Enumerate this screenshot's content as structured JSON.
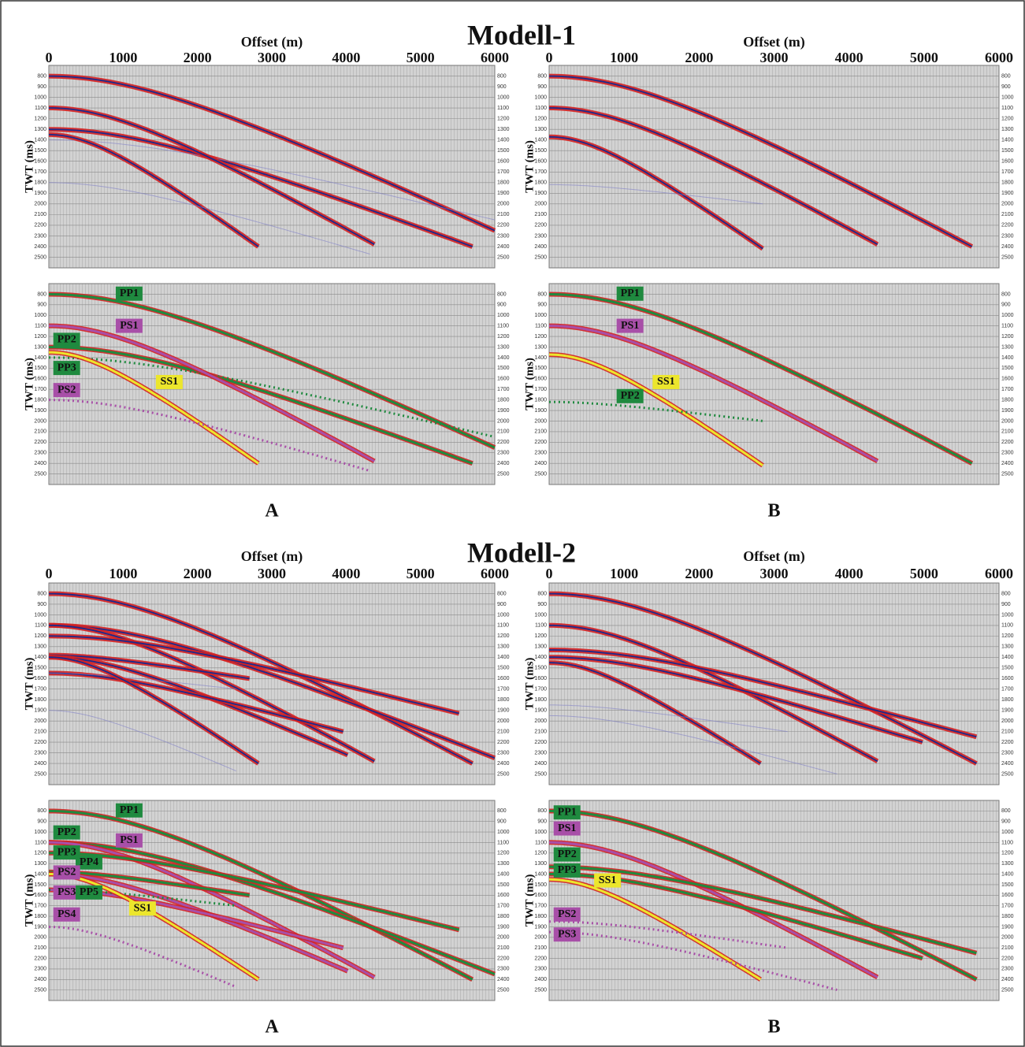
{
  "models": [
    {
      "title": "Modell-1",
      "x_axis_label": "Offset (m)",
      "xticks": [
        0,
        1000,
        2000,
        3000,
        4000,
        5000,
        6000
      ],
      "y_axis_label": "TWT (ms)",
      "yticks": [
        800,
        900,
        1000,
        1100,
        1200,
        1300,
        1400,
        1500,
        1600,
        1700,
        1800,
        1900,
        2000,
        2100,
        2200,
        2300,
        2400,
        2500
      ],
      "columns": [
        {
          "label": "A",
          "events": [
            {
              "name": "PP1",
              "color": "#1f8a3f"
            },
            {
              "name": "PS1",
              "color": "#a84fa8"
            },
            {
              "name": "PP2",
              "color": "#1f8a3f"
            },
            {
              "name": "PP3",
              "color": "#1f8a3f"
            },
            {
              "name": "SS1",
              "color": "#ece62c"
            },
            {
              "name": "PS2",
              "color": "#a84fa8"
            }
          ]
        },
        {
          "label": "B",
          "events": [
            {
              "name": "PP1",
              "color": "#1f8a3f"
            },
            {
              "name": "PS1",
              "color": "#a84fa8"
            },
            {
              "name": "SS1",
              "color": "#ece62c"
            },
            {
              "name": "PP2",
              "color": "#1f8a3f"
            }
          ]
        }
      ]
    },
    {
      "title": "Modell-2",
      "x_axis_label": "Offset (m)",
      "xticks": [
        0,
        1000,
        2000,
        3000,
        4000,
        5000,
        6000
      ],
      "y_axis_label": "TWT (ms)",
      "yticks": [
        800,
        900,
        1000,
        1100,
        1200,
        1300,
        1400,
        1500,
        1600,
        1700,
        1800,
        1900,
        2000,
        2100,
        2200,
        2300,
        2400,
        2500
      ],
      "columns": [
        {
          "label": "A",
          "events": [
            {
              "name": "PP1",
              "color": "#1f8a3f"
            },
            {
              "name": "PP2",
              "color": "#1f8a3f"
            },
            {
              "name": "PS1",
              "color": "#a84fa8"
            },
            {
              "name": "PP3",
              "color": "#1f8a3f"
            },
            {
              "name": "PP4",
              "color": "#1f8a3f"
            },
            {
              "name": "PS2",
              "color": "#a84fa8"
            },
            {
              "name": "PS3",
              "color": "#a84fa8"
            },
            {
              "name": "PP5",
              "color": "#1f8a3f"
            },
            {
              "name": "SS1",
              "color": "#ece62c"
            },
            {
              "name": "PS4",
              "color": "#a84fa8"
            }
          ]
        },
        {
          "label": "B",
          "events": [
            {
              "name": "PP1",
              "color": "#1f8a3f"
            },
            {
              "name": "PS1",
              "color": "#a84fa8"
            },
            {
              "name": "PP2",
              "color": "#1f8a3f"
            },
            {
              "name": "PP3",
              "color": "#1f8a3f"
            },
            {
              "name": "SS1",
              "color": "#ece62c"
            },
            {
              "name": "PS2",
              "color": "#a84fa8"
            },
            {
              "name": "PS3",
              "color": "#a84fa8"
            }
          ]
        }
      ]
    }
  ]
}
